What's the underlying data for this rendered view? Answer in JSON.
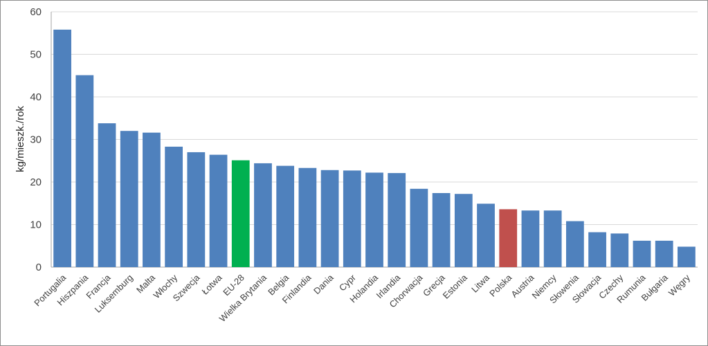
{
  "chart_data": {
    "type": "bar",
    "ylabel": "kg/mieszk./rok",
    "ylim": [
      0,
      60
    ],
    "yticks": [
      0,
      10,
      20,
      30,
      40,
      50,
      60
    ],
    "grid": true,
    "colors": {
      "default": "#4f81bd",
      "EU-28": "#00b050",
      "Polska": "#c0504d"
    },
    "categories": [
      "Portugalia",
      "Hiszpania",
      "Francja",
      "Luksemburg",
      "Malta",
      "Włochy",
      "Szwecja",
      "Łotwa",
      "EU-28",
      "Wielka Brytania",
      "Belgia",
      "Finlandia",
      "Dania",
      "Cypr",
      "Holandia",
      "Irlandia",
      "Chorwacja",
      "Grecja",
      "Estonia",
      "Litwa",
      "Polska",
      "Austria",
      "Niemcy",
      "Słowenia",
      "Słowacja",
      "Czechy",
      "Rumunia",
      "Bułgaria",
      "Węgry"
    ],
    "values": [
      55.8,
      45.1,
      33.8,
      32.0,
      31.6,
      28.3,
      27.0,
      26.4,
      25.1,
      24.4,
      23.8,
      23.3,
      22.8,
      22.7,
      22.2,
      22.1,
      18.4,
      17.4,
      17.2,
      14.9,
      13.6,
      13.3,
      13.3,
      10.8,
      8.2,
      7.9,
      6.2,
      6.2,
      4.8
    ]
  }
}
